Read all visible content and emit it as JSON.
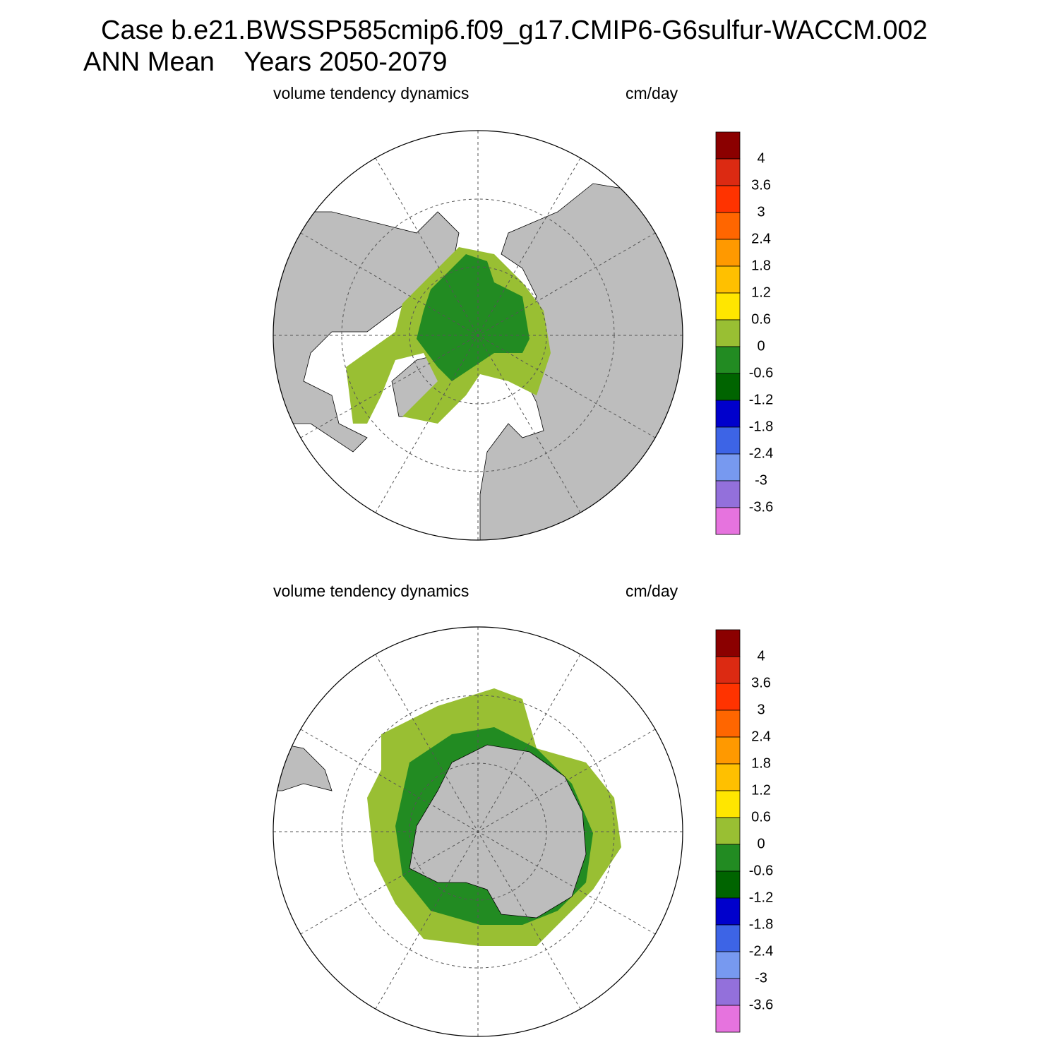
{
  "title_lines": [
    "Case b.e21.BWSSP585cmip6.f09_g17.CMIP6-G6sulfur-WACCM.002",
    "ANN Mean    Years 2050-2079"
  ],
  "panels": [
    {
      "title": "volume tendency dynamics",
      "units": "cm/day",
      "colorbar": {
        "labels": [
          "4",
          "3.6",
          "3",
          "2.4",
          "1.8",
          "1.2",
          "0.6",
          "0",
          "-0.6",
          "-1.2",
          "-1.8",
          "-2.4",
          "-3",
          "-3.6"
        ],
        "colors": [
          "#8B0000",
          "#DC2A12",
          "#FF3300",
          "#FF6600",
          "#FF9900",
          "#FFC000",
          "#FFE600",
          "#99BF33",
          "#228B22",
          "#006400",
          "#0000CC",
          "#3D64E6",
          "#7799F0",
          "#9370DB",
          "#E673DE"
        ]
      }
    },
    {
      "title": "volume tendency dynamics",
      "units": "cm/day",
      "colorbar": {
        "labels": [
          "4",
          "3.6",
          "3",
          "2.4",
          "1.8",
          "1.2",
          "0.6",
          "0",
          "-0.6",
          "-1.2",
          "-1.8",
          "-2.4",
          "-3",
          "-3.6"
        ],
        "colors": [
          "#8B0000",
          "#DC2A12",
          "#FF3300",
          "#FF6600",
          "#FF9900",
          "#FFC000",
          "#FFE600",
          "#99BF33",
          "#228B22",
          "#006400",
          "#0000CC",
          "#3D64E6",
          "#7799F0",
          "#9370DB",
          "#E673DE"
        ]
      }
    }
  ]
}
